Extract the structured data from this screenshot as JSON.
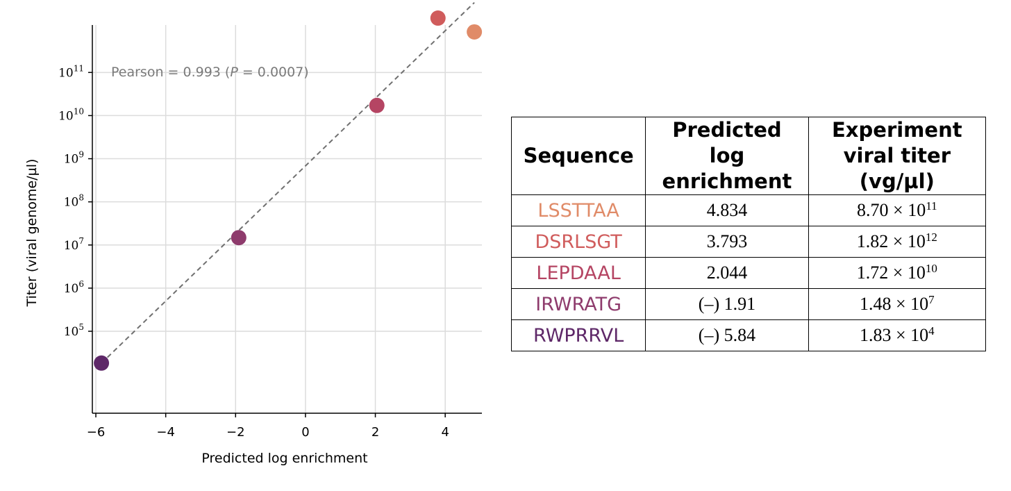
{
  "chart_data": {
    "type": "scatter",
    "xlabel": "Predicted log enrichment",
    "ylabel": "Titer (viral genome/µl)",
    "xlim": [
      -6.1,
      5.05
    ],
    "ylim_log10": [
      3.1,
      12.1
    ],
    "xscale": "linear",
    "yscale": "log",
    "grid": true,
    "x_ticks": [
      -6,
      -4,
      -2,
      0,
      2,
      4
    ],
    "x_tick_labels": [
      "−6",
      "−4",
      "−2",
      "0",
      "2",
      "4"
    ],
    "y_ticks": [
      {
        "base": "10",
        "exp": "5"
      },
      {
        "base": "10",
        "exp": "6"
      },
      {
        "base": "10",
        "exp": "7"
      },
      {
        "base": "10",
        "exp": "8"
      },
      {
        "base": "10",
        "exp": "9"
      },
      {
        "base": "10",
        "exp": "10"
      },
      {
        "base": "10",
        "exp": "11"
      }
    ],
    "points": [
      {
        "x": 4.834,
        "y": 870000000000.0,
        "color": "#e08b68"
      },
      {
        "x": 3.793,
        "y": 1820000000000.0,
        "color": "#d05c5c"
      },
      {
        "x": 2.044,
        "y": 17200000000.0,
        "color": "#b54563"
      },
      {
        "x": -1.91,
        "y": 14800000.0,
        "color": "#8e3b6c"
      },
      {
        "x": -5.84,
        "y": 18300.0,
        "color": "#5e2868"
      }
    ],
    "fit_line": {
      "x": [
        -5.84,
        4.834
      ],
      "y_log10": [
        4.26,
        12.62
      ],
      "color": "#707070",
      "style": "dashed"
    },
    "annotation": {
      "prefix": "Pearson = 0.993 (",
      "italic": "P",
      "suffix": " = 0.0007)"
    }
  },
  "table": {
    "headers": [
      [
        "Sequence"
      ],
      [
        "Predicted",
        "log",
        "enrichment"
      ],
      [
        "Experiment",
        "viral titer",
        "(vg/µl)"
      ]
    ],
    "rows": [
      {
        "sequence": "LSSTTAA",
        "color": "#e08b68",
        "predicted": "4.834",
        "mantissa": "8.70 × 10",
        "exponent": "11"
      },
      {
        "sequence": "DSRLSGT",
        "color": "#d05c5c",
        "predicted": "3.793",
        "mantissa": "1.82 × 10",
        "exponent": "12"
      },
      {
        "sequence": "LEPDAAL",
        "color": "#b54563",
        "predicted": "2.044",
        "mantissa": "1.72 × 10",
        "exponent": "10"
      },
      {
        "sequence": "IRWRATG",
        "color": "#8e3b6c",
        "predicted": "(–) 1.91",
        "mantissa": "1.48 × 10",
        "exponent": "7"
      },
      {
        "sequence": "RWPRRVL",
        "color": "#5e2868",
        "predicted": "(–) 5.84",
        "mantissa": "1.83 × 10",
        "exponent": "4"
      }
    ]
  }
}
